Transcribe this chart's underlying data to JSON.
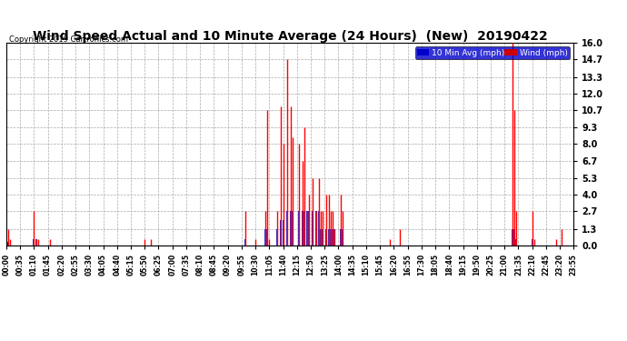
{
  "title": "Wind Speed Actual and 10 Minute Average (24 Hours)  (New)  20190422",
  "copyright": "Copyright 2019 Cartronics.com",
  "legend_blue_label": "10 Min Avg (mph)",
  "legend_red_label": "Wind (mph)",
  "yticks": [
    0.0,
    1.3,
    2.7,
    4.0,
    5.3,
    6.7,
    8.0,
    9.3,
    10.7,
    12.0,
    13.3,
    14.7,
    16.0
  ],
  "ymax": 16.0,
  "ymin": 0.0,
  "background_color": "#ffffff",
  "plot_bg_color": "#ffffff",
  "grid_color": "#aaaaaa",
  "title_color": "#000000",
  "title_fontsize": 10,
  "red_color": "#ff0000",
  "blue_color": "#0000cc",
  "legend_bg_blue": "#0000cc",
  "legend_bg_red": "#cc0000",
  "wind_data": {
    "00:05": 1.3,
    "00:10": 0.5,
    "01:10": 2.7,
    "01:15": 0.5,
    "01:20": 0.5,
    "01:50": 0.5,
    "05:50": 0.5,
    "06:05": 0.5,
    "10:05": 2.7,
    "10:30": 0.5,
    "10:55": 2.7,
    "11:00": 10.7,
    "11:05": 0.5,
    "11:25": 2.7,
    "11:35": 11.0,
    "11:40": 8.0,
    "11:50": 14.7,
    "12:00": 11.0,
    "12:05": 8.5,
    "12:20": 8.0,
    "12:30": 6.7,
    "12:35": 9.3,
    "12:40": 2.7,
    "12:45": 4.0,
    "12:55": 5.3,
    "13:05": 2.7,
    "13:10": 5.3,
    "13:15": 2.7,
    "13:20": 2.7,
    "13:30": 4.0,
    "13:35": 4.0,
    "13:40": 2.7,
    "13:45": 2.7,
    "13:50": 1.3,
    "14:05": 4.0,
    "14:10": 2.7,
    "16:10": 0.5,
    "16:35": 1.3,
    "21:20": 16.0,
    "21:25": 10.7,
    "21:30": 2.7,
    "22:10": 2.7,
    "22:15": 0.5,
    "23:10": 0.5,
    "23:25": 1.3
  },
  "avg_data": {
    "00:05": 0.3,
    "01:10": 0.5,
    "01:15": 0.5,
    "10:05": 0.5,
    "10:55": 1.3,
    "11:00": 1.3,
    "11:25": 1.3,
    "11:35": 2.0,
    "11:40": 2.0,
    "11:50": 2.7,
    "12:00": 2.7,
    "12:05": 2.7,
    "12:20": 2.7,
    "12:30": 2.7,
    "12:35": 2.7,
    "12:40": 2.7,
    "12:45": 2.7,
    "12:55": 2.7,
    "13:05": 2.7,
    "13:10": 2.7,
    "13:15": 1.3,
    "13:20": 1.3,
    "13:30": 1.3,
    "13:35": 1.3,
    "13:40": 1.3,
    "13:45": 1.3,
    "13:50": 1.3,
    "14:05": 1.3,
    "14:10": 1.3,
    "21:20": 1.3,
    "21:25": 1.3,
    "21:30": 0.5,
    "22:10": 0.5
  },
  "xtick_step": 7,
  "n_points": 288
}
